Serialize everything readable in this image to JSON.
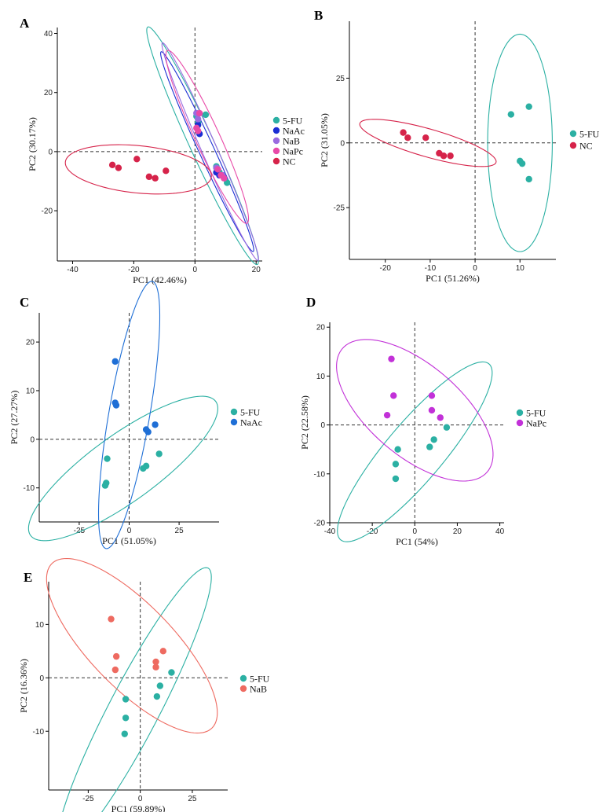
{
  "colors": {
    "5-FU": "#2bb0a3",
    "NaAc": "#1a2ed4",
    "NaB": "#9a6be0",
    "NaPc": "#e84aa8",
    "NC": "#d6234a",
    "NaAc_C": "#1f6fd6",
    "NaPc_D": "#c231d8",
    "NaB_E": "#ee6a60"
  },
  "chart_data": [
    {
      "id": "A",
      "type": "scatter",
      "panel_label": "A",
      "xlabel": "PC1 (42.46%)",
      "ylabel": "PC2 (30.17%)",
      "xlim": [
        -45,
        22
      ],
      "ylim": [
        -37,
        42
      ],
      "xticks": [
        -40,
        -20,
        0,
        20
      ],
      "yticks": [
        -20,
        0,
        20,
        40
      ],
      "series": [
        {
          "name": "5-FU",
          "color_key": "5-FU",
          "points": [
            [
              0.5,
              12
            ],
            [
              1,
              10
            ],
            [
              3.5,
              12.5
            ],
            [
              7,
              -5
            ],
            [
              7.5,
              -6
            ],
            [
              8,
              -7
            ],
            [
              10.5,
              -10.5
            ]
          ],
          "ellipse": {
            "cx": 2.5,
            "cy": 2,
            "rx": 44,
            "ry": 4,
            "angle": -66
          }
        },
        {
          "name": "NaAc",
          "color_key": "NaAc",
          "points": [
            [
              1,
              9
            ],
            [
              1.5,
              6
            ],
            [
              7,
              -7
            ],
            [
              8,
              -8
            ]
          ],
          "ellipse": {
            "cx": 4,
            "cy": 0,
            "rx": 37,
            "ry": 2.5,
            "angle": -66
          }
        },
        {
          "name": "NaB",
          "color_key": "NaB",
          "points": [
            [
              0.5,
              13
            ],
            [
              1,
              11
            ],
            [
              7,
              -5.5
            ],
            [
              9,
              -8
            ]
          ],
          "ellipse": {
            "cx": 5,
            "cy": 0,
            "rx": 40,
            "ry": 2.5,
            "angle": -67
          }
        },
        {
          "name": "NaPc",
          "color_key": "NaPc",
          "points": [
            [
              0.5,
              8
            ],
            [
              1,
              7
            ],
            [
              1.5,
              13
            ],
            [
              7.5,
              -6
            ],
            [
              8.5,
              -8
            ],
            [
              9.5,
              -9
            ]
          ],
          "ellipse": {
            "cx": 4,
            "cy": 5,
            "rx": 32,
            "ry": 4,
            "angle": -66
          }
        },
        {
          "name": "NC",
          "color_key": "NC",
          "points": [
            [
              -27,
              -4.5
            ],
            [
              -25,
              -5.5
            ],
            [
              -19,
              -2.5
            ],
            [
              -15,
              -8.5
            ],
            [
              -13,
              -9
            ],
            [
              -9.5,
              -6.5
            ]
          ],
          "ellipse": {
            "cx": -18.5,
            "cy": -6,
            "rx": 24,
            "ry": 8,
            "angle": -6
          }
        }
      ],
      "legend": [
        "5-FU",
        "NaAc",
        "NaB",
        "NaPc",
        "NC"
      ]
    },
    {
      "id": "B",
      "type": "scatter",
      "panel_label": "B",
      "xlabel": "PC1 (51.26%)",
      "ylabel": "PC2 (31.05%)",
      "xlim": [
        -28,
        18
      ],
      "ylim": [
        -45,
        47
      ],
      "xticks": [
        -20,
        -10,
        0,
        10
      ],
      "yticks": [
        -25,
        0,
        25
      ],
      "series": [
        {
          "name": "5-FU",
          "color_key": "5-FU",
          "points": [
            [
              8,
              11
            ],
            [
              12,
              14
            ],
            [
              10,
              -7
            ],
            [
              10.5,
              -8
            ],
            [
              12,
              -14
            ]
          ],
          "ellipse": {
            "cx": 10,
            "cy": 0,
            "rx": 7.2,
            "ry": 42,
            "angle": 0
          }
        },
        {
          "name": "NC",
          "color_key": "NC",
          "points": [
            [
              -16,
              4
            ],
            [
              -15,
              2
            ],
            [
              -11,
              2
            ],
            [
              -8,
              -4
            ],
            [
              -7,
              -5
            ],
            [
              -5.5,
              -5
            ]
          ],
          "ellipse": {
            "cx": -10.5,
            "cy": 0,
            "rx": 17,
            "ry": 5,
            "angle": -28
          }
        }
      ],
      "legend": [
        "5-FU",
        "NC"
      ]
    },
    {
      "id": "C",
      "type": "scatter",
      "panel_label": "C",
      "xlabel": "PC1 (51.05%)",
      "ylabel": "PC2 (27.27%)",
      "xlim": [
        -45,
        45
      ],
      "ylim": [
        -17,
        26
      ],
      "xticks": [
        -25,
        0,
        25
      ],
      "yticks": [
        -10,
        0,
        10,
        20
      ],
      "series": [
        {
          "name": "5-FU",
          "color_key": "5-FU",
          "points": [
            [
              -11,
              -4
            ],
            [
              -11.5,
              -9
            ],
            [
              -12,
              -9.5
            ],
            [
              7,
              -6
            ],
            [
              8.5,
              -5.5
            ],
            [
              15,
              -3
            ]
          ],
          "ellipse": {
            "cx": -3,
            "cy": -6,
            "rx": 49,
            "ry": 8,
            "angle": 15
          }
        },
        {
          "name": "NaAc",
          "color_key": "NaAc_C",
          "points": [
            [
              -7,
              16
            ],
            [
              -7,
              7.5
            ],
            [
              -6.5,
              7
            ],
            [
              8.5,
              2
            ],
            [
              9.5,
              1.5
            ],
            [
              13,
              3
            ]
          ],
          "ellipse": {
            "cx": 0,
            "cy": 5,
            "rx": 30,
            "ry": 9.5,
            "angle": 65
          }
        }
      ],
      "legend": [
        "5-FU",
        "NaAc"
      ]
    },
    {
      "id": "D",
      "type": "scatter",
      "panel_label": "D",
      "xlabel": "PC1 (54%)",
      "ylabel": "PC2 (22.58%)",
      "xlim": [
        -40,
        42
      ],
      "ylim": [
        -20,
        21
      ],
      "xticks": [
        -40,
        -20,
        0,
        20,
        40
      ],
      "yticks": [
        -20,
        -10,
        0,
        10,
        20
      ],
      "series": [
        {
          "name": "5-FU",
          "color_key": "5-FU",
          "points": [
            [
              -8,
              -5
            ],
            [
              -9,
              -8
            ],
            [
              -9,
              -11
            ],
            [
              7,
              -4.5
            ],
            [
              9,
              -3
            ],
            [
              15,
              -0.5
            ]
          ],
          "ellipse": {
            "cx": 0,
            "cy": -5.5,
            "rx": 40,
            "ry": 8,
            "angle": 25
          }
        },
        {
          "name": "NaPc",
          "color_key": "NaPc_D",
          "points": [
            [
              -11,
              13.5
            ],
            [
              -10,
              6
            ],
            [
              -13,
              2
            ],
            [
              8,
              6
            ],
            [
              8,
              3
            ],
            [
              12,
              1.5
            ]
          ],
          "ellipse": {
            "cx": 0,
            "cy": 3,
            "rx": 38,
            "ry": 11,
            "angle": -15
          }
        }
      ],
      "legend": [
        "5-FU",
        "NaPc"
      ]
    },
    {
      "id": "E",
      "type": "scatter",
      "panel_label": "E",
      "xlabel": "PC1 (59.89%)",
      "ylabel": "PC2 (16.36%)",
      "xlim": [
        -44,
        42
      ],
      "ylim": [
        -21,
        18
      ],
      "xticks": [
        -25,
        0,
        25
      ],
      "yticks": [
        -10,
        0,
        10
      ],
      "series": [
        {
          "name": "5-FU",
          "color_key": "5-FU",
          "points": [
            [
              -7,
              -4
            ],
            [
              -7,
              -7.5
            ],
            [
              -7.5,
              -10.5
            ],
            [
              8,
              -3.5
            ],
            [
              9.5,
              -1.5
            ],
            [
              15,
              1
            ]
          ],
          "ellipse": {
            "cx": -3,
            "cy": -6,
            "rx": 45,
            "ry": 8,
            "angle": 35
          }
        },
        {
          "name": "NaB",
          "color_key": "NaB_E",
          "points": [
            [
              -14,
              11
            ],
            [
              -11.5,
              4
            ],
            [
              -12,
              1.5
            ],
            [
              7.5,
              3
            ],
            [
              7.5,
              2
            ],
            [
              11,
              5
            ]
          ],
          "ellipse": {
            "cx": -4,
            "cy": 6,
            "rx": 43,
            "ry": 10,
            "angle": -18
          }
        }
      ],
      "legend": [
        "5-FU",
        "NaB"
      ]
    }
  ]
}
